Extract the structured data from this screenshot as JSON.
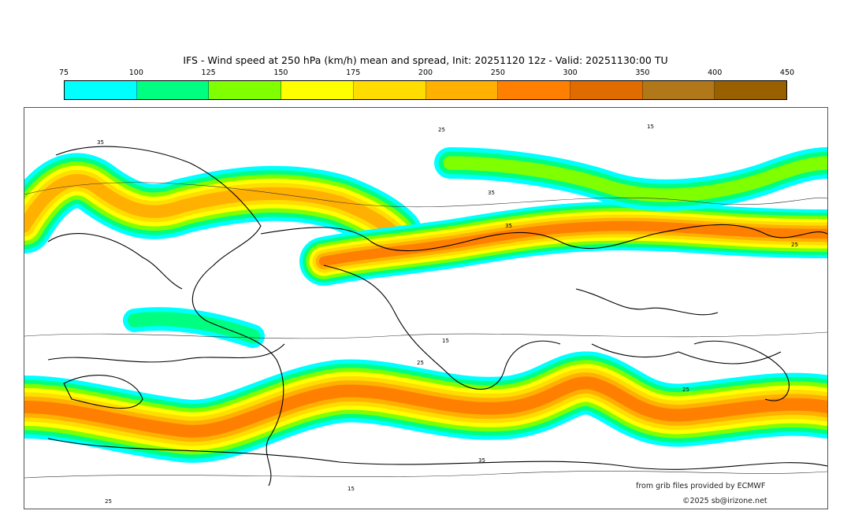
{
  "title": "IFS - Wind speed at 250 hPa (km/h) mean and spread, Init: 20251120 12z - Valid: 20251130:00 TU",
  "colorbar": {
    "ticks": [
      "75",
      "100",
      "125",
      "150",
      "175",
      "200",
      "250",
      "300",
      "350",
      "400",
      "450"
    ],
    "colors": [
      "#00ffff",
      "#00ff80",
      "#80ff00",
      "#ffff00",
      "#ffdd00",
      "#ffb000",
      "#ff8000",
      "#e06c00",
      "#b07818",
      "#996000"
    ]
  },
  "contour_labels": [
    "35",
    "25",
    "15",
    "35",
    "25",
    "35",
    "25",
    "15",
    "25",
    "35",
    "25",
    "15"
  ],
  "credits": {
    "source": "from grib files provided by ECMWF",
    "copyright": "©2025 sb@irizone.net"
  }
}
